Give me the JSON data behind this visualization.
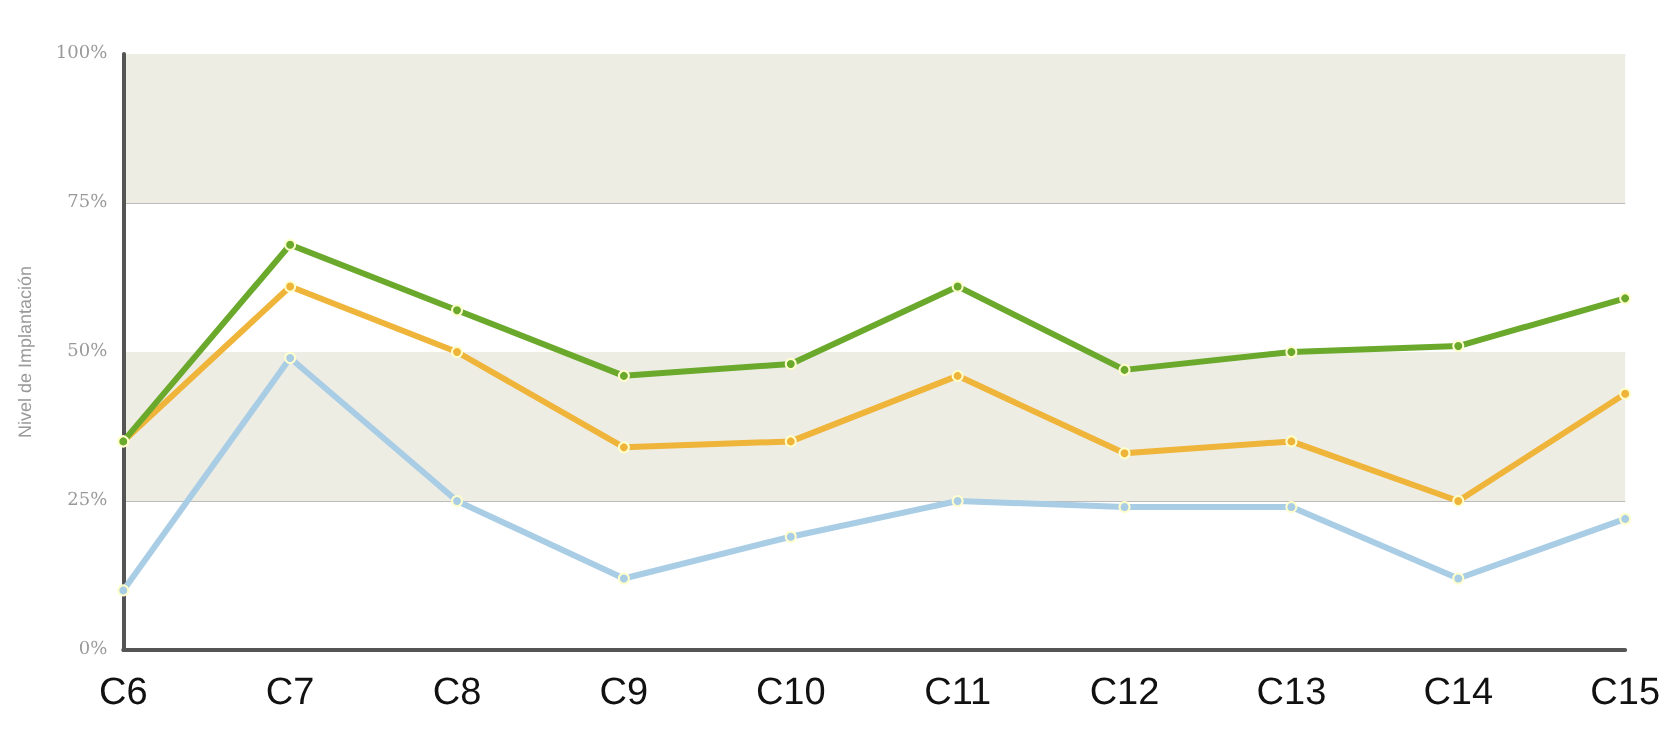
{
  "chart_data": {
    "type": "line",
    "ylabel": "Nivel de Implantación",
    "categories": [
      "C6",
      "C7",
      "C8",
      "C9",
      "C10",
      "C11",
      "C12",
      "C13",
      "C14",
      "C15"
    ],
    "series": [
      {
        "color": "#6aa92c",
        "values": [
          35,
          68,
          57,
          46,
          48,
          61,
          47,
          50,
          51,
          59
        ]
      },
      {
        "color": "#efb43a",
        "values": [
          35,
          61,
          50,
          34,
          35,
          46,
          33,
          35,
          25,
          43
        ]
      },
      {
        "color": "#a9cde5",
        "values": [
          10,
          49,
          25,
          12,
          19,
          25,
          24,
          24,
          12,
          22
        ]
      }
    ],
    "ylim": [
      0,
      100
    ],
    "yticks": [
      {
        "value": 0,
        "label": "0%"
      },
      {
        "value": 25,
        "label": "25%"
      },
      {
        "value": 50,
        "label": "50%"
      },
      {
        "value": 75,
        "label": "75%"
      },
      {
        "value": 100,
        "label": "100%"
      }
    ],
    "bands": [
      {
        "axis": "y",
        "from": 75,
        "to": 100,
        "color": "#eeede4"
      },
      {
        "axis": "y",
        "from": 25,
        "to": 50,
        "color": "#eeede4"
      }
    ],
    "grid": "y",
    "marker": "circle",
    "line_style": "solid"
  }
}
